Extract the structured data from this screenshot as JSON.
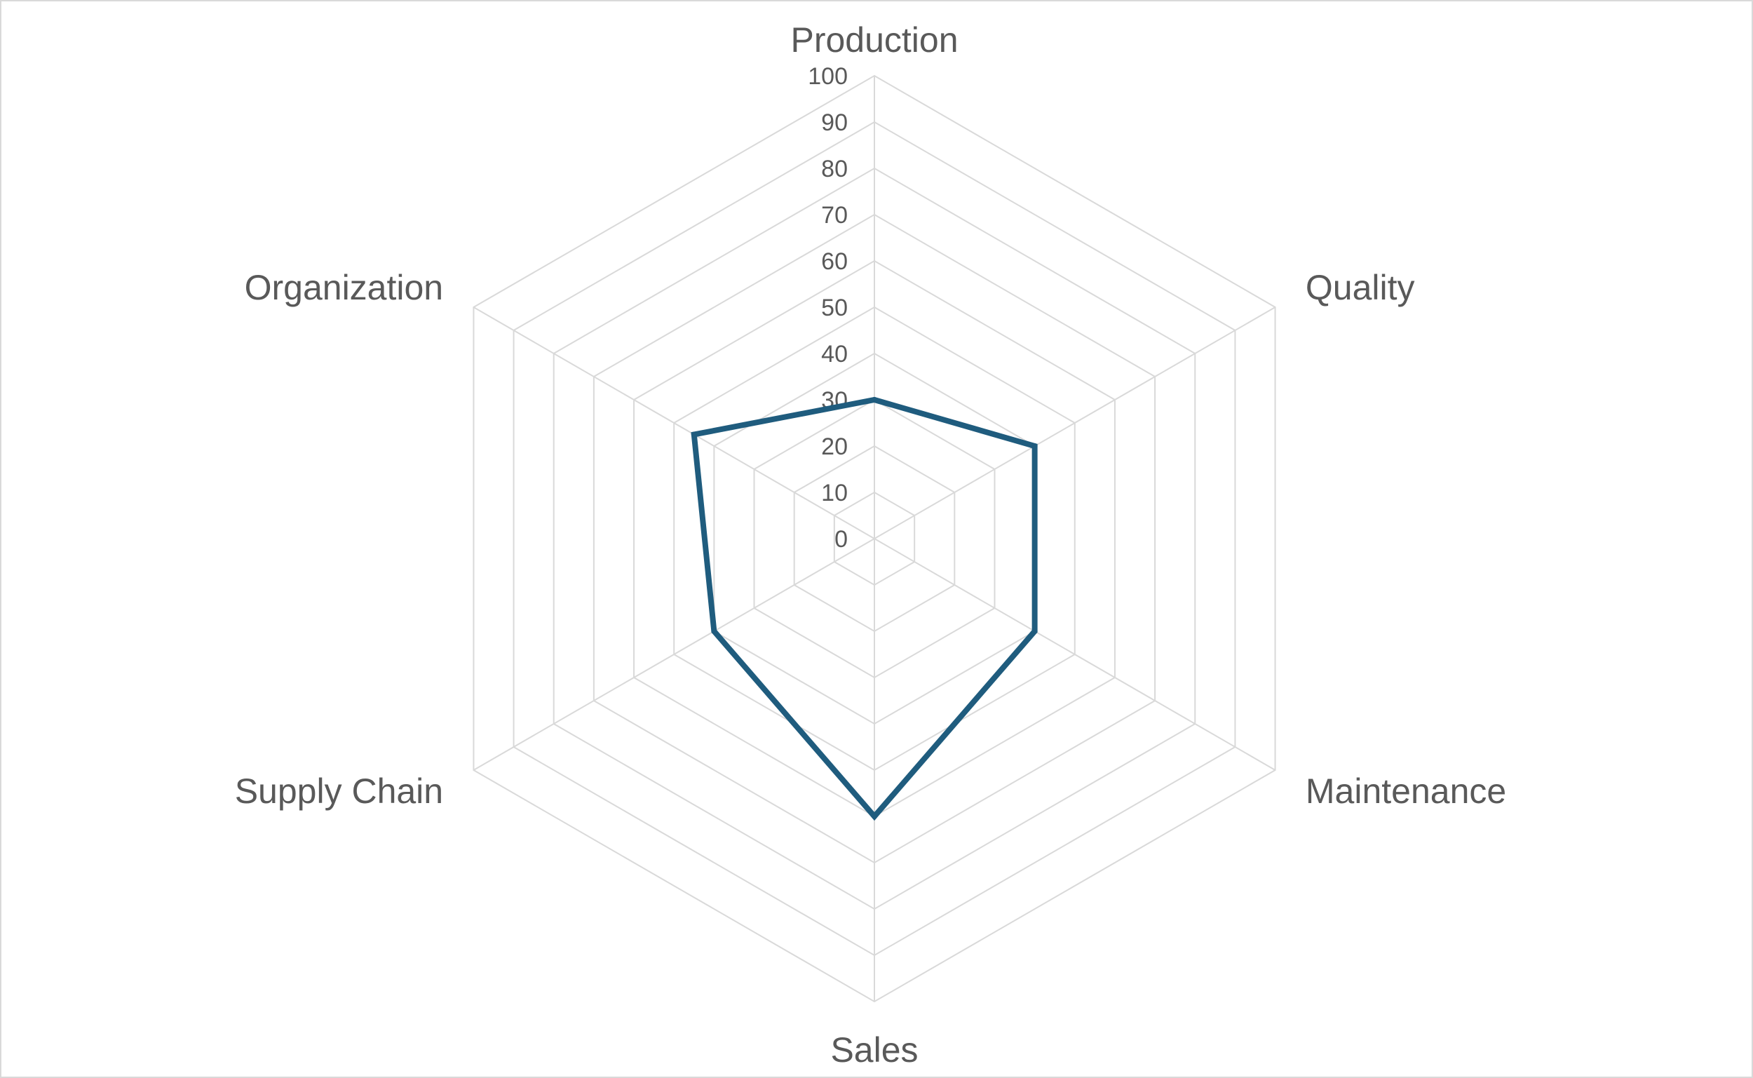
{
  "chart_data": {
    "type": "radar",
    "categories": [
      "Production",
      "Quality",
      "Maintenance",
      "Sales",
      "Supply Chain",
      "Organization"
    ],
    "series": [
      {
        "values": [
          30,
          40,
          40,
          60,
          40,
          45
        ],
        "color": "#1F5C7E"
      }
    ],
    "rlim": [
      0,
      100
    ],
    "ticks": [
      "0",
      "10",
      "20",
      "30",
      "40",
      "50",
      "60",
      "70",
      "80",
      "90",
      "100"
    ],
    "grid": true,
    "legend": "none",
    "grid_color": "#d9d9d9",
    "text_color": "#595959"
  }
}
